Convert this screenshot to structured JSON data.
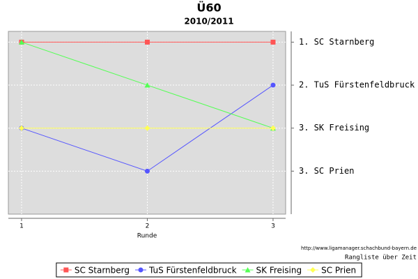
{
  "chart_data": {
    "type": "line",
    "title": "Ü60",
    "subtitle": "2010/2011",
    "x_label": "Runde",
    "source": "http://www.ligamanager.schachbund-bayern.de",
    "caption": "Rangliste über Zeit",
    "x": [
      1,
      2,
      3
    ],
    "xlim": [
      0.895,
      3.1
    ],
    "xticks": [
      1,
      2,
      3
    ],
    "ylim": [
      5,
      0.75
    ],
    "yticks": [
      {
        "value": 1,
        "label": "1. SC Starnberg"
      },
      {
        "value": 2,
        "label": "2. TuS Fürstenfeldbruck"
      },
      {
        "value": 3,
        "label": "3. SK Freising"
      },
      {
        "value": 4,
        "label": "3. SC Prien"
      }
    ],
    "y_axis_side": "right",
    "grid": true,
    "legend": "bottom",
    "series": [
      {
        "name": "SC Starnberg",
        "color": "#ff5555",
        "marker": "square",
        "values": [
          1,
          1,
          1
        ]
      },
      {
        "name": "TuS Fürstenfeldbruck",
        "color": "#5555ff",
        "marker": "circle",
        "values": [
          3,
          4,
          2
        ]
      },
      {
        "name": "SK Freising",
        "color": "#55ff55",
        "marker": "triangle",
        "values": [
          1,
          2,
          3
        ]
      },
      {
        "name": "SC Prien",
        "color": "#ffff55",
        "marker": "diamond",
        "values": [
          3,
          3,
          3
        ]
      }
    ]
  }
}
